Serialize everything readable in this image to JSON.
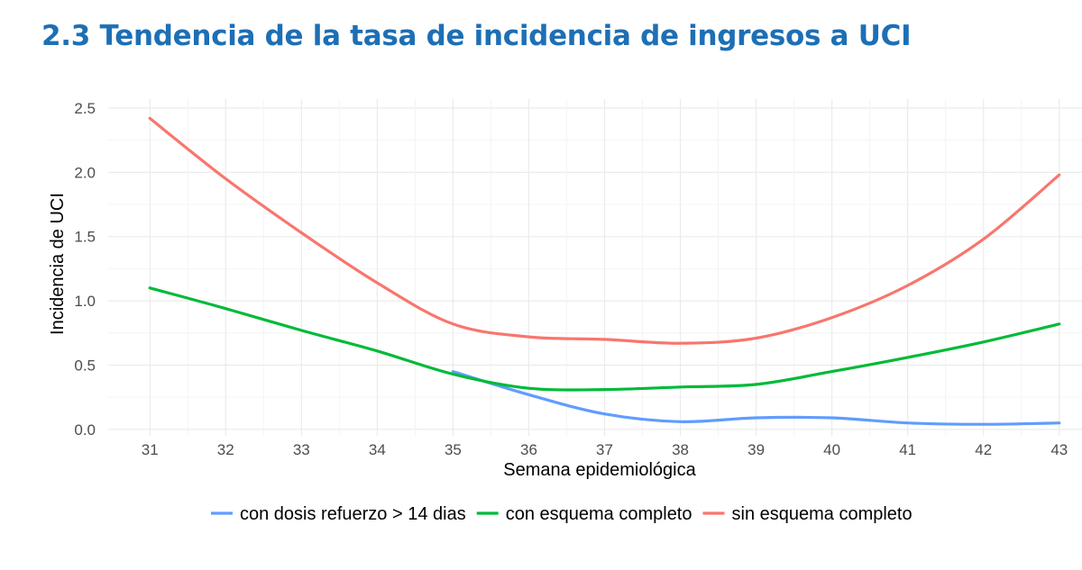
{
  "page": {
    "title": "2.3 Tendencia de la tasa de incidencia de ingresos a UCI"
  },
  "chart_data": {
    "type": "line",
    "xlabel": "Semana epidemiológica",
    "ylabel": "Incidencia de UCI",
    "x": [
      31,
      32,
      33,
      34,
      35,
      36,
      37,
      38,
      39,
      40,
      41,
      42,
      43
    ],
    "x_tick_labels": [
      "31",
      "32",
      "33",
      "34",
      "35",
      "36",
      "37",
      "38",
      "39",
      "40",
      "41",
      "42",
      "43"
    ],
    "xlim": [
      30.45,
      43.3
    ],
    "ylim": [
      -0.05,
      2.57
    ],
    "y_ticks": [
      0.0,
      0.5,
      1.0,
      1.5,
      2.0,
      2.5
    ],
    "y_tick_labels": [
      "0.0",
      "0.5",
      "1.0",
      "1.5",
      "2.0",
      "2.5"
    ],
    "grid": true,
    "legend_position": "bottom",
    "series": [
      {
        "name": "con dosis refuerzo > 14 dias",
        "color": "#619cff",
        "x": [
          35,
          36,
          37,
          38,
          39,
          40,
          41,
          42,
          43
        ],
        "values": [
          0.45,
          0.27,
          0.12,
          0.06,
          0.09,
          0.09,
          0.05,
          0.04,
          0.05
        ]
      },
      {
        "name": "con esquema completo",
        "color": "#00ba38",
        "x": [
          31,
          32,
          33,
          34,
          35,
          36,
          37,
          38,
          39,
          40,
          41,
          42,
          43
        ],
        "values": [
          1.1,
          0.94,
          0.77,
          0.61,
          0.43,
          0.32,
          0.31,
          0.33,
          0.35,
          0.45,
          0.56,
          0.68,
          0.82
        ]
      },
      {
        "name": "sin esquema completo",
        "color": "#f8766d",
        "x": [
          31,
          32,
          33,
          34,
          35,
          36,
          37,
          38,
          39,
          40,
          41,
          42,
          43
        ],
        "values": [
          2.42,
          1.95,
          1.53,
          1.14,
          0.82,
          0.72,
          0.7,
          0.67,
          0.71,
          0.87,
          1.12,
          1.48,
          1.98
        ]
      }
    ]
  }
}
